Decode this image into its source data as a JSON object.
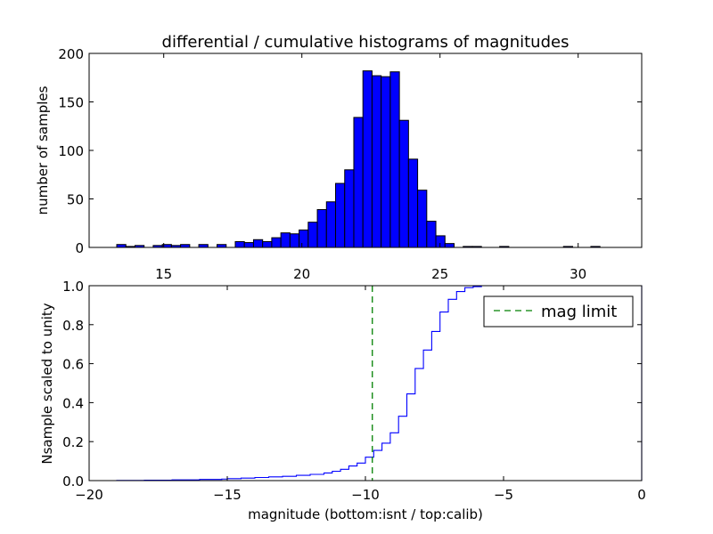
{
  "chart_data": [
    {
      "type": "bar",
      "title": "differential / cumulative histograms of magnitudes",
      "xlabel": "",
      "ylabel": "number of samples",
      "xlim": [
        12.3,
        32.3
      ],
      "ylim": [
        0,
        200
      ],
      "yticks": [
        0,
        50,
        100,
        150,
        200
      ],
      "xticks": [
        15,
        20,
        25,
        30
      ],
      "bin_width": 0.33,
      "bin_left_edges": [
        13.3,
        13.63,
        13.96,
        14.29,
        14.62,
        14.95,
        15.28,
        15.61,
        15.94,
        16.27,
        16.6,
        16.93,
        17.26,
        17.59,
        17.92,
        18.25,
        18.58,
        18.91,
        19.24,
        19.57,
        19.9,
        20.23,
        20.56,
        20.89,
        21.22,
        21.55,
        21.88,
        22.21,
        22.54,
        22.87,
        23.2,
        23.53,
        23.86,
        24.19,
        24.52,
        24.85,
        25.18,
        25.51,
        25.84,
        26.17,
        26.5,
        26.83,
        27.16,
        27.49,
        27.82,
        28.15,
        28.48,
        28.81,
        29.14,
        29.47,
        29.8,
        30.13,
        30.46,
        30.79,
        31.12,
        31.45,
        31.78
      ],
      "values": [
        3,
        1,
        2,
        0,
        2,
        3,
        2,
        3,
        0,
        3,
        0,
        3,
        0,
        6,
        5,
        8,
        6,
        10,
        15,
        14,
        18,
        26,
        39,
        47,
        66,
        80,
        134,
        182,
        177,
        176,
        181,
        131,
        91,
        59,
        27,
        12,
        4,
        0,
        1,
        1,
        0,
        0,
        1,
        0,
        0,
        0,
        0,
        0,
        0,
        1,
        0,
        0,
        1,
        0,
        0,
        0,
        0
      ],
      "bar_color": "#0000ff"
    },
    {
      "type": "line",
      "xlabel": "magnitude (bottom:isnt / top:calib)",
      "ylabel": "Nsample scaled to unity",
      "xlim": [
        -20,
        0
      ],
      "ylim": [
        0,
        1.0
      ],
      "xticks": [
        -20,
        -15,
        -10,
        -5,
        0
      ],
      "yticks": [
        "0.0",
        "0.2",
        "0.4",
        "0.6",
        "0.8",
        "1.0"
      ],
      "legend_position": "top-right",
      "series": [
        {
          "name": "",
          "style": "steps",
          "color": "#0000ff",
          "x": [
            -20,
            -19,
            -18,
            -17,
            -16,
            -15.2,
            -15,
            -14.5,
            -14,
            -13.5,
            -13,
            -12.5,
            -12,
            -11.5,
            -11.2,
            -10.9,
            -10.6,
            -10.3,
            -10.0,
            -9.7,
            -9.4,
            -9.1,
            -8.8,
            -8.5,
            -8.2,
            -7.9,
            -7.6,
            -7.3,
            -7.0,
            -6.7,
            -6.4,
            -6.1,
            -5.8,
            0
          ],
          "y": [
            0,
            0.001,
            0.002,
            0.004,
            0.006,
            0.008,
            0.01,
            0.013,
            0.016,
            0.019,
            0.022,
            0.027,
            0.032,
            0.039,
            0.048,
            0.058,
            0.075,
            0.09,
            0.12,
            0.155,
            0.192,
            0.245,
            0.33,
            0.445,
            0.575,
            0.67,
            0.765,
            0.865,
            0.93,
            0.97,
            0.99,
            0.995,
            1.0,
            1.0
          ]
        },
        {
          "name": "mag limit",
          "style": "dashed-vertical",
          "color": "#008000",
          "x": -9.75
        }
      ]
    }
  ]
}
